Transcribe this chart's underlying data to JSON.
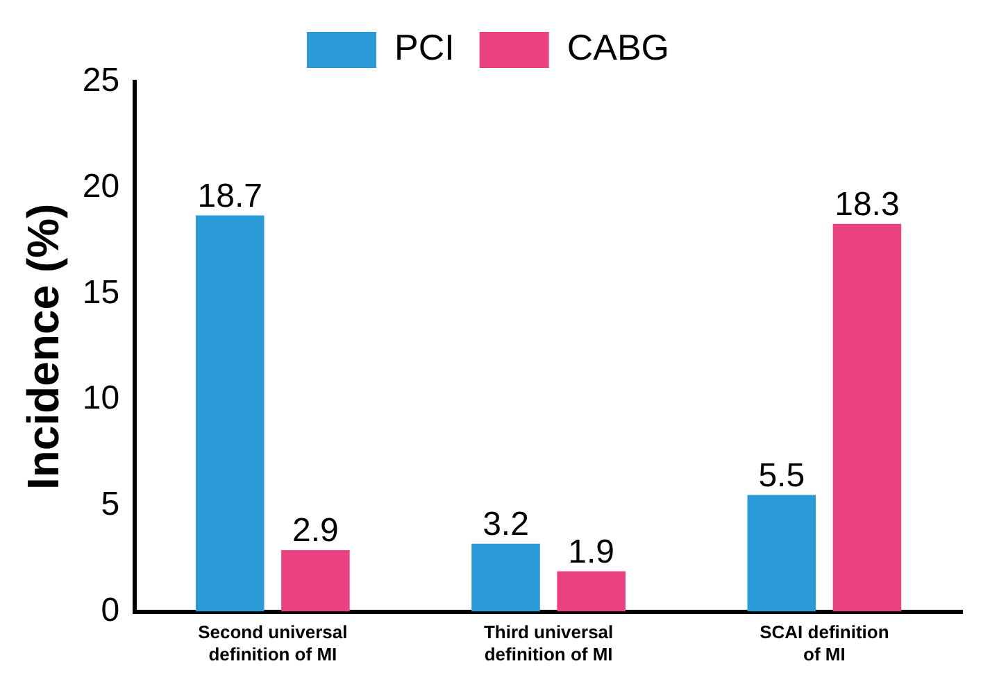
{
  "chart_data": {
    "type": "bar",
    "ylabel": "Incidence (%)",
    "categories": [
      [
        "Second universal",
        "definition of MI"
      ],
      [
        "Third universal",
        "definition of MI"
      ],
      [
        "SCAI definition",
        "of MI"
      ]
    ],
    "series": [
      {
        "name": "PCI",
        "color": "#2b9bd8",
        "values": [
          18.7,
          3.2,
          5.5
        ]
      },
      {
        "name": "CABG",
        "color": "#ea4281",
        "values": [
          2.9,
          1.9,
          18.3
        ]
      }
    ],
    "ylim": [
      0,
      25
    ],
    "yticks": [
      0,
      5,
      10,
      15,
      20,
      25
    ],
    "grid": false,
    "legend": "top",
    "data_labels": true
  }
}
